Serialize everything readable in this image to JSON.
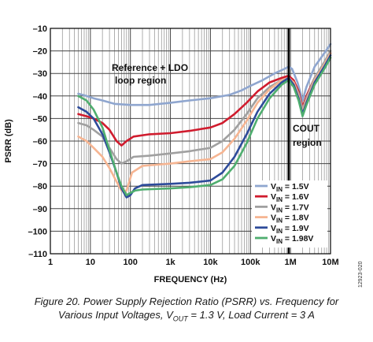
{
  "chart_data": {
    "type": "line",
    "title": "",
    "xlabel": "FREQUENCY (Hz)",
    "ylabel": "PSRR (dB)",
    "x_scale": "log",
    "xlim": [
      1,
      10000000
    ],
    "ylim": [
      -110,
      -10
    ],
    "grid": true,
    "x_ticks": [
      {
        "value": 1,
        "label": "1"
      },
      {
        "value": 10,
        "label": "10"
      },
      {
        "value": 100,
        "label": "100"
      },
      {
        "value": 1000,
        "label": "1k"
      },
      {
        "value": 10000,
        "label": "10k"
      },
      {
        "value": 100000,
        "label": "100k"
      },
      {
        "value": 1000000,
        "label": "1M"
      },
      {
        "value": 10000000,
        "label": "10M"
      }
    ],
    "y_ticks": [
      -10,
      -20,
      -30,
      -40,
      -50,
      -60,
      -70,
      -80,
      -90,
      -100,
      -110
    ],
    "legend_position": "bottom-right",
    "series": [
      {
        "label_main": "V",
        "label_sub": "IN",
        "label_value": " = 1.5V",
        "color": "#8fa6cf",
        "points": [
          [
            5,
            -39
          ],
          [
            8,
            -40
          ],
          [
            12,
            -41
          ],
          [
            20,
            -42
          ],
          [
            40,
            -43.5
          ],
          [
            100,
            -44
          ],
          [
            300,
            -44
          ],
          [
            1000,
            -43
          ],
          [
            3000,
            -42
          ],
          [
            10000,
            -41
          ],
          [
            30000,
            -39.5
          ],
          [
            60000,
            -37.5
          ],
          [
            100000,
            -35.5
          ],
          [
            200000,
            -33
          ],
          [
            400000,
            -30
          ],
          [
            700000,
            -28
          ],
          [
            900000,
            -27
          ],
          [
            1100000,
            -28
          ],
          [
            1500000,
            -34
          ],
          [
            2000000,
            -42
          ],
          [
            2500000,
            -36
          ],
          [
            4000000,
            -27
          ],
          [
            7000000,
            -21
          ],
          [
            10000000,
            -17
          ]
        ]
      },
      {
        "label_main": "V",
        "label_sub": "IN",
        "label_value": " = 1.6V",
        "color": "#d01c2e",
        "points": [
          [
            5,
            -48
          ],
          [
            8,
            -49
          ],
          [
            12,
            -50
          ],
          [
            20,
            -52
          ],
          [
            30,
            -55
          ],
          [
            45,
            -60
          ],
          [
            60,
            -62
          ],
          [
            80,
            -60
          ],
          [
            120,
            -58
          ],
          [
            300,
            -57
          ],
          [
            1000,
            -56.5
          ],
          [
            3000,
            -55.5
          ],
          [
            10000,
            -54
          ],
          [
            20000,
            -52
          ],
          [
            40000,
            -48
          ],
          [
            80000,
            -43
          ],
          [
            150000,
            -38
          ],
          [
            300000,
            -34
          ],
          [
            600000,
            -32
          ],
          [
            900000,
            -31
          ],
          [
            1200000,
            -33
          ],
          [
            1600000,
            -38
          ],
          [
            2000000,
            -45
          ],
          [
            2500000,
            -40
          ],
          [
            4000000,
            -32
          ],
          [
            7000000,
            -26
          ],
          [
            10000000,
            -21
          ]
        ]
      },
      {
        "label_main": "V",
        "label_sub": "IN",
        "label_value": " = 1.7V",
        "color": "#a0a0a0",
        "points": [
          [
            5,
            -52
          ],
          [
            8,
            -53
          ],
          [
            12,
            -55
          ],
          [
            20,
            -58
          ],
          [
            30,
            -63
          ],
          [
            45,
            -68
          ],
          [
            60,
            -70
          ],
          [
            80,
            -69
          ],
          [
            120,
            -67
          ],
          [
            300,
            -66.5
          ],
          [
            1000,
            -65.5
          ],
          [
            3000,
            -64.5
          ],
          [
            10000,
            -63
          ],
          [
            20000,
            -60
          ],
          [
            40000,
            -55
          ],
          [
            80000,
            -48
          ],
          [
            150000,
            -41
          ],
          [
            300000,
            -36
          ],
          [
            600000,
            -33
          ],
          [
            900000,
            -32
          ],
          [
            1200000,
            -34
          ],
          [
            1600000,
            -39
          ],
          [
            2000000,
            -46
          ],
          [
            2500000,
            -41
          ],
          [
            4000000,
            -32
          ],
          [
            7000000,
            -25
          ],
          [
            10000000,
            -20
          ]
        ]
      },
      {
        "label_main": "V",
        "label_sub": "IN",
        "label_value": " = 1.8V",
        "color": "#f6b592",
        "points": [
          [
            5,
            -58
          ],
          [
            8,
            -60
          ],
          [
            12,
            -63
          ],
          [
            20,
            -67
          ],
          [
            30,
            -72
          ],
          [
            45,
            -78
          ],
          [
            60,
            -82
          ],
          [
            80,
            -82
          ],
          [
            110,
            -74
          ],
          [
            200,
            -71
          ],
          [
            1000,
            -70
          ],
          [
            3000,
            -69
          ],
          [
            10000,
            -68
          ],
          [
            20000,
            -65
          ],
          [
            40000,
            -59
          ],
          [
            80000,
            -51
          ],
          [
            150000,
            -43
          ],
          [
            300000,
            -37
          ],
          [
            600000,
            -33
          ],
          [
            900000,
            -32
          ],
          [
            1200000,
            -34
          ],
          [
            1600000,
            -40
          ],
          [
            2000000,
            -47
          ],
          [
            2500000,
            -42
          ],
          [
            4000000,
            -33
          ],
          [
            7000000,
            -26
          ],
          [
            10000000,
            -21
          ]
        ]
      },
      {
        "label_main": "V",
        "label_sub": "IN",
        "label_value": " = 1.9V",
        "color": "#2d4b9a",
        "points": [
          [
            5,
            -45
          ],
          [
            8,
            -47
          ],
          [
            12,
            -50
          ],
          [
            20,
            -57
          ],
          [
            30,
            -65
          ],
          [
            45,
            -74
          ],
          [
            60,
            -81
          ],
          [
            80,
            -85
          ],
          [
            100,
            -84
          ],
          [
            130,
            -81
          ],
          [
            200,
            -79.5
          ],
          [
            1000,
            -79
          ],
          [
            3000,
            -78.5
          ],
          [
            10000,
            -77.5
          ],
          [
            20000,
            -74
          ],
          [
            40000,
            -67
          ],
          [
            80000,
            -57
          ],
          [
            150000,
            -47
          ],
          [
            300000,
            -39
          ],
          [
            600000,
            -34
          ],
          [
            900000,
            -32
          ],
          [
            1200000,
            -35
          ],
          [
            1600000,
            -41
          ],
          [
            2000000,
            -48
          ],
          [
            2500000,
            -43
          ],
          [
            4000000,
            -34
          ],
          [
            7000000,
            -27
          ],
          [
            10000000,
            -22
          ]
        ]
      },
      {
        "label_main": "V",
        "label_sub": "IN",
        "label_value": " = 1.98V",
        "color": "#4fae6f",
        "points": [
          [
            5,
            -40
          ],
          [
            8,
            -42
          ],
          [
            12,
            -46
          ],
          [
            20,
            -54
          ],
          [
            30,
            -64
          ],
          [
            45,
            -74
          ],
          [
            60,
            -80
          ],
          [
            80,
            -84
          ],
          [
            100,
            -83
          ],
          [
            130,
            -82
          ],
          [
            200,
            -81.5
          ],
          [
            1000,
            -81
          ],
          [
            3000,
            -80.5
          ],
          [
            10000,
            -79.5
          ],
          [
            20000,
            -77
          ],
          [
            40000,
            -71
          ],
          [
            80000,
            -61
          ],
          [
            150000,
            -50
          ],
          [
            300000,
            -41
          ],
          [
            600000,
            -35
          ],
          [
            900000,
            -33
          ],
          [
            1200000,
            -36
          ],
          [
            1600000,
            -42
          ],
          [
            2000000,
            -49
          ],
          [
            2500000,
            -44
          ],
          [
            4000000,
            -35
          ],
          [
            7000000,
            -28
          ],
          [
            10000000,
            -23
          ]
        ]
      }
    ],
    "annotations": {
      "region_left_line1": "Reference + LDO",
      "region_left_line2": "loop region",
      "region_right_line1": "COUT",
      "region_right_line2": "region",
      "boundary_x": 900000
    },
    "figure_id": "12923-020"
  },
  "caption": {
    "line1": "Figure 20. Power Supply Rejection Ratio (PSRR) vs. Frequency for",
    "line2_pre": "Various Input Voltages, V",
    "line2_sub": "OUT",
    "line2_post": " = 1.3 V, Load Current = 3 A"
  }
}
